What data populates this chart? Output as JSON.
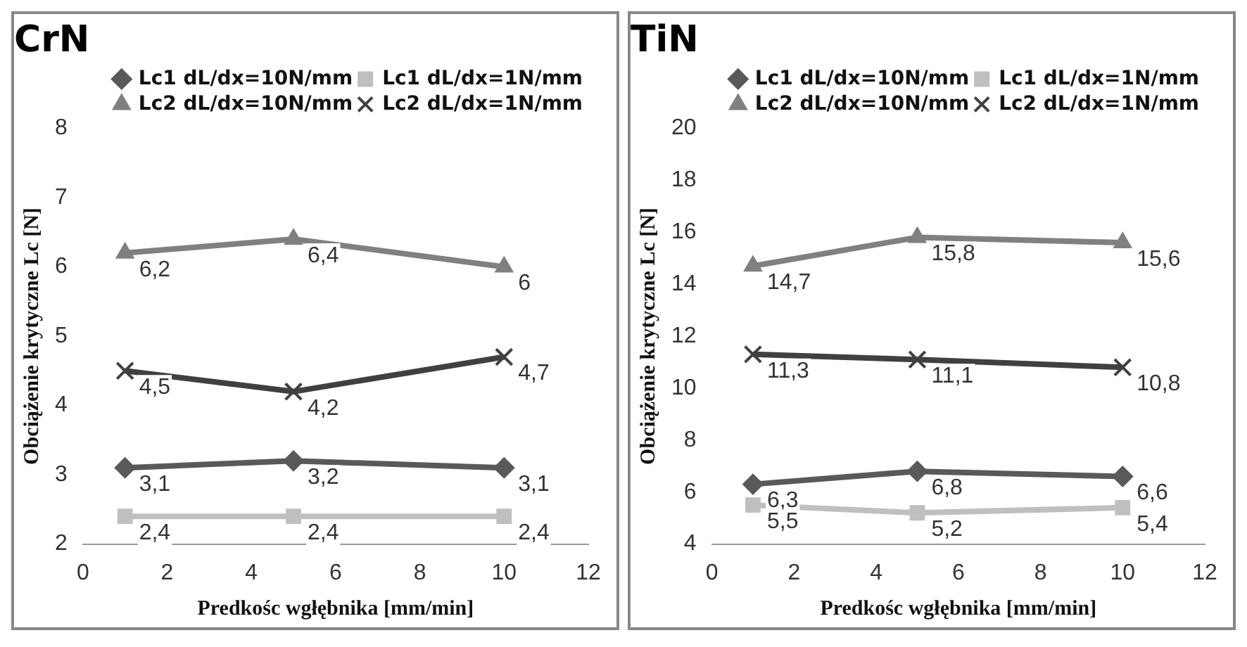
{
  "chart_data": [
    {
      "type": "line",
      "title": "CrN",
      "xlabel": "Predkośc wgłębnika [mm/min]",
      "ylabel": "Obciążenie krytyczne Lc [N]",
      "xlim": [
        0,
        12
      ],
      "xticks": [
        0,
        2,
        4,
        6,
        8,
        10,
        12
      ],
      "ylim": [
        2,
        8
      ],
      "yticks": [
        2,
        3,
        4,
        5,
        6,
        7,
        8
      ],
      "grid": false,
      "legend": "top right",
      "x": [
        1,
        5,
        10
      ],
      "series": [
        {
          "name": "Lc1 dL/dx=10N/mm",
          "color": "#595959",
          "marker": "diamond",
          "values": [
            3.1,
            3.2,
            3.1
          ],
          "value_labels": [
            "3,1",
            "3,2",
            "3,1"
          ]
        },
        {
          "name": "Lc1 dL/dx=1N/mm",
          "color": "#bfbfbf",
          "marker": "square",
          "values": [
            2.4,
            2.4,
            2.4
          ],
          "value_labels": [
            "2,4",
            "2,4",
            "2,4"
          ]
        },
        {
          "name": "Lc2 dL/dx=10N/mm",
          "color": "#808080",
          "marker": "triangle",
          "values": [
            6.2,
            6.4,
            6
          ],
          "value_labels": [
            "6,2",
            "6,4",
            "6"
          ]
        },
        {
          "name": "Lc2 dL/dx=1N/mm",
          "color": "#404040",
          "marker": "cross",
          "values": [
            4.5,
            4.2,
            4.7
          ],
          "value_labels": [
            "4,5",
            "4,2",
            "4,7"
          ]
        }
      ]
    },
    {
      "type": "line",
      "title": "TiN",
      "xlabel": "Predkośc wgłębnika [mm/min]",
      "ylabel": "Obciążenie krytyczne Lc [N]",
      "xlim": [
        0,
        12
      ],
      "xticks": [
        0,
        2,
        4,
        6,
        8,
        10,
        12
      ],
      "ylim": [
        4,
        20
      ],
      "yticks": [
        4,
        6,
        8,
        10,
        12,
        14,
        16,
        18,
        20
      ],
      "grid": false,
      "legend": "top right",
      "x": [
        1,
        5,
        10
      ],
      "series": [
        {
          "name": "Lc1 dL/dx=10N/mm",
          "color": "#595959",
          "marker": "diamond",
          "values": [
            6.3,
            6.8,
            6.6
          ],
          "value_labels": [
            "6,3",
            "6,8",
            "6,6"
          ]
        },
        {
          "name": "Lc1 dL/dx=1N/mm",
          "color": "#bfbfbf",
          "marker": "square",
          "values": [
            5.5,
            5.2,
            5.4
          ],
          "value_labels": [
            "5,5",
            "5,2",
            "5,4"
          ]
        },
        {
          "name": "Lc2 dL/dx=10N/mm",
          "color": "#808080",
          "marker": "triangle",
          "values": [
            14.7,
            15.8,
            15.6
          ],
          "value_labels": [
            "14,7",
            "15,8",
            "15,6"
          ]
        },
        {
          "name": "Lc2 dL/dx=1N/mm",
          "color": "#404040",
          "marker": "cross",
          "values": [
            11.3,
            11.1,
            10.8
          ],
          "value_labels": [
            "11,3",
            "11,1",
            "10,8"
          ]
        }
      ]
    }
  ]
}
